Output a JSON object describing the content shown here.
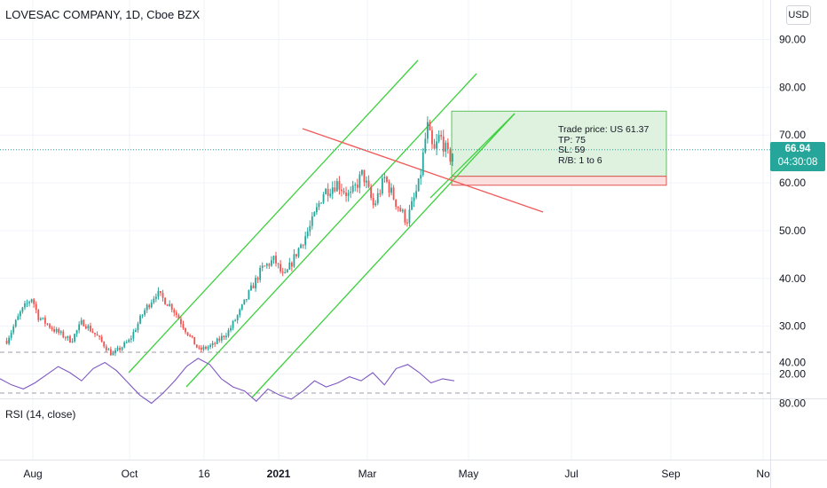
{
  "header": {
    "symbol_title": "LOVESAC COMPANY, 1D, Cboe BZX",
    "currency": "USD"
  },
  "indicator": {
    "label": "RSI (14, close)"
  },
  "trade_box": {
    "line1": "Trade price: US 61.37",
    "line2": "TP: 75",
    "line3": "SL: 59",
    "line4": "R/B: 1 to 6"
  },
  "last_price": {
    "price": "66.94",
    "countdown": "04:30:08"
  },
  "colors": {
    "up": "#26a69a",
    "down": "#ef5350",
    "channel": "#3cd13c",
    "trendline": "#f05a5a",
    "rsi": "#7e57c2",
    "rsi_band": "#ede4fb",
    "target_zone": "#dff2df",
    "stop_zone": "#fbdede",
    "last_price": "#26a69a"
  },
  "chart_data": [
    {
      "type": "candlestick",
      "title": "LOVESAC COMPANY, 1D, Cboe BZX",
      "ylim": [
        16,
        96
      ],
      "y_ticks": [
        "90.00",
        "80.00",
        "70.00",
        "60.00",
        "50.00",
        "40.00",
        "30.00",
        "20.00"
      ],
      "x_ticks": [
        "Aug",
        "Oct",
        "16",
        "2021",
        "Mar",
        "May",
        "Jul",
        "Sep",
        "No"
      ],
      "price_path": [
        [
          "Jul 15",
          27
        ],
        [
          "Jul 24",
          33
        ],
        [
          "Jul 31",
          36
        ],
        [
          "Aug 4",
          32
        ],
        [
          "Aug 15",
          29
        ],
        [
          "Aug 25",
          27
        ],
        [
          "Sep 1",
          31
        ],
        [
          "Sep 10",
          28
        ],
        [
          "Sep 20",
          24
        ],
        [
          "Oct 1",
          27
        ],
        [
          "Oct 10",
          33
        ],
        [
          "Oct 18",
          37
        ],
        [
          "Oct 28",
          34
        ],
        [
          "Nov 6",
          29
        ],
        [
          "Nov 14",
          25
        ],
        [
          "Nov 23",
          26
        ],
        [
          "Dec 3",
          29
        ],
        [
          "Dec 10",
          33
        ],
        [
          "Dec 16",
          37
        ],
        [
          "Dec 24",
          42
        ],
        [
          "Jan 1",
          44
        ],
        [
          "Jan 7",
          40
        ],
        [
          "Jan 16",
          46
        ],
        [
          "Jan 24",
          51
        ],
        [
          "Feb 1",
          58
        ],
        [
          "Feb 10",
          60
        ],
        [
          "Feb 18",
          57
        ],
        [
          "Feb 26",
          62
        ],
        [
          "Mar 5",
          55
        ],
        [
          "Mar 12",
          61
        ],
        [
          "Mar 19",
          56
        ],
        [
          "Mar 26",
          52
        ],
        [
          "Apr 3",
          60
        ],
        [
          "Apr 8",
          72
        ],
        [
          "Apr 12",
          66
        ],
        [
          "Apr 16",
          70
        ],
        [
          "Apr 22",
          65
        ],
        [
          "Apr 25",
          66.94
        ]
      ],
      "last_price": 66.94
    },
    {
      "type": "line",
      "title": "RSI (14, close)",
      "ylim": [
        33,
        83
      ],
      "y_ticks": [
        "80.00",
        "40.00"
      ],
      "bands": [
        30,
        70
      ],
      "series": [
        {
          "name": "RSI (14, close)",
          "values": [
            56,
            62,
            66,
            60,
            52,
            44,
            50,
            58,
            46,
            40,
            48,
            60,
            72,
            80,
            70,
            58,
            44,
            36,
            42,
            56,
            64,
            68,
            78,
            66,
            72,
            76,
            68,
            58,
            64,
            60,
            54,
            58,
            50,
            62,
            46,
            42,
            50,
            60,
            56,
            58
          ]
        }
      ]
    }
  ]
}
